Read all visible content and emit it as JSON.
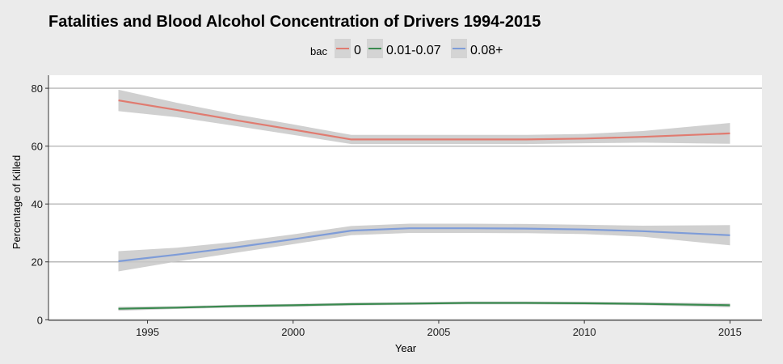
{
  "chart_data": {
    "type": "line",
    "title": "Fatalities and Blood Alcohol Concentration of Drivers 1994-2015",
    "xlabel": "Year",
    "ylabel": "Percentage of Killed",
    "xlim": [
      1991.6,
      2016.1
    ],
    "ylim": [
      -0.2,
      84.5
    ],
    "x_ticks": [
      1995,
      2000,
      2005,
      2010,
      2015
    ],
    "x_tick_labels": [
      "1995",
      "2000",
      "2005",
      "2010",
      "2015"
    ],
    "y_ticks": [
      0,
      20,
      40,
      60,
      80
    ],
    "y_tick_labels": [
      "0",
      "20",
      "40",
      "60",
      "80"
    ],
    "grid": true,
    "legend": {
      "title": "bac",
      "position": "top",
      "entries": [
        "0",
        "0.01-0.07",
        "0.08+"
      ]
    },
    "x": [
      1994,
      1996,
      1998,
      2000,
      2002,
      2004,
      2006,
      2008,
      2010,
      2012,
      2015
    ],
    "series": [
      {
        "name": "0",
        "color": "#e07b70",
        "values": [
          75.8,
          72.5,
          69.0,
          65.7,
          62.3,
          62.3,
          62.3,
          62.3,
          62.6,
          63.2,
          64.4
        ],
        "ci_half_width": [
          3.7,
          2.5,
          2.0,
          1.8,
          1.6,
          1.6,
          1.6,
          1.6,
          1.6,
          2.0,
          3.6
        ]
      },
      {
        "name": "0.01-0.07",
        "color": "#3a8a4f",
        "values": [
          3.8,
          4.2,
          4.7,
          5.0,
          5.4,
          5.6,
          5.8,
          5.8,
          5.7,
          5.5,
          5.0
        ],
        "ci_half_width": [
          0.7,
          0.5,
          0.5,
          0.5,
          0.5,
          0.5,
          0.5,
          0.5,
          0.5,
          0.5,
          0.7
        ]
      },
      {
        "name": "0.08+",
        "color": "#7e9cd8",
        "values": [
          20.2,
          22.5,
          25.0,
          27.8,
          30.8,
          31.6,
          31.6,
          31.5,
          31.2,
          30.6,
          29.2
        ],
        "ci_half_width": [
          3.5,
          2.4,
          1.9,
          1.7,
          1.6,
          1.6,
          1.6,
          1.6,
          1.6,
          1.9,
          3.5
        ]
      }
    ],
    "confidence_band_color": "#c8c8c8"
  }
}
